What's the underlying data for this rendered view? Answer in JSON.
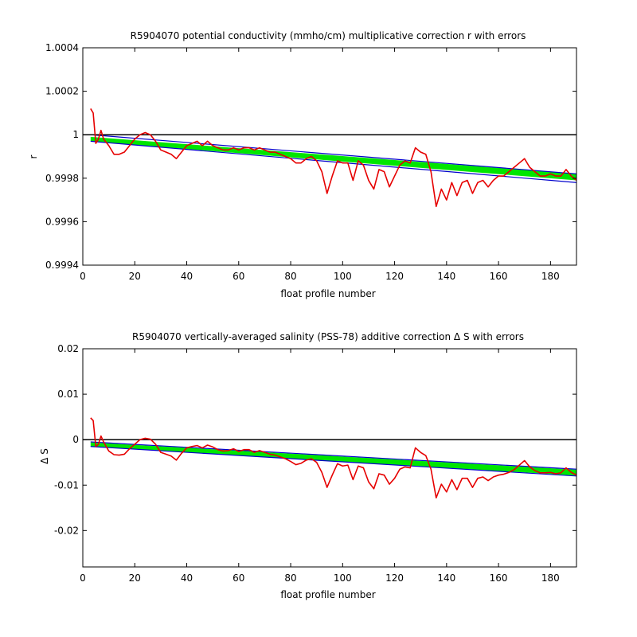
{
  "chart_data": [
    {
      "type": "line",
      "title": "R5904070 potential conductivity (mmho/cm) multiplicative correction r with errors",
      "xlabel": "float profile number",
      "ylabel": "r",
      "xlim": [
        0,
        190
      ],
      "ylim": [
        0.9994,
        1.0004
      ],
      "xticks": [
        0,
        20,
        40,
        60,
        80,
        100,
        120,
        140,
        160,
        180
      ],
      "xtick_labels": [
        "0",
        "20",
        "40",
        "60",
        "80",
        "100",
        "120",
        "140",
        "160",
        "180"
      ],
      "yticks": [
        0.9994,
        0.9996,
        0.9998,
        1.0,
        1.0002,
        1.0004
      ],
      "ytick_labels": [
        "0.9994",
        "0.9996",
        "0.9998",
        "1",
        "1.0002",
        "1.0004"
      ],
      "grid": false,
      "reference_line": 1.0,
      "band_upper": {
        "x": [
          3,
          190
        ],
        "y": [
          1.0,
          0.99982
        ]
      },
      "band_lower": {
        "x": [
          3,
          190
        ],
        "y": [
          0.99997,
          0.99978
        ]
      },
      "band_fill": {
        "x": [
          3,
          190
        ],
        "y_top": [
          0.99999,
          0.99982
        ],
        "y_bottom": [
          0.99997,
          0.99979
        ]
      },
      "series": [
        {
          "x": [
            3,
            4,
            5,
            6,
            7,
            8,
            10,
            12,
            14,
            16,
            18,
            20,
            22,
            24,
            26,
            28,
            30,
            32,
            34,
            36,
            38,
            40,
            42,
            44,
            46,
            48,
            50,
            52,
            54,
            56,
            58,
            60,
            62,
            64,
            66,
            68,
            70,
            72,
            74,
            76,
            78,
            80,
            82,
            84,
            86,
            88,
            90,
            92,
            94,
            96,
            98,
            100,
            102,
            104,
            106,
            108,
            110,
            112,
            114,
            116,
            118,
            120,
            122,
            124,
            126,
            128,
            130,
            132,
            134,
            136,
            138,
            140,
            142,
            144,
            146,
            148,
            150,
            152,
            154,
            156,
            158,
            160,
            162,
            164,
            166,
            168,
            170,
            172,
            174,
            176,
            178,
            180,
            182,
            184,
            186,
            188,
            190
          ],
          "y": [
            1.00012,
            1.0001,
            0.99996,
            0.99998,
            1.00002,
            0.99998,
            0.99995,
            0.99991,
            0.99991,
            0.99992,
            0.99995,
            0.99998,
            1.0,
            1.00001,
            1.0,
            0.99997,
            0.99993,
            0.99992,
            0.99991,
            0.99989,
            0.99992,
            0.99995,
            0.99996,
            0.99997,
            0.99995,
            0.99997,
            0.99995,
            0.99994,
            0.99993,
            0.99993,
            0.99994,
            0.99993,
            0.99994,
            0.99994,
            0.99993,
            0.99994,
            0.99993,
            0.99992,
            0.99992,
            0.99991,
            0.9999,
            0.99989,
            0.99987,
            0.99987,
            0.99989,
            0.9999,
            0.99988,
            0.99983,
            0.99973,
            0.99981,
            0.99988,
            0.99987,
            0.99987,
            0.99979,
            0.99988,
            0.99986,
            0.99979,
            0.99975,
            0.99984,
            0.99983,
            0.99976,
            0.99981,
            0.99986,
            0.99988,
            0.99987,
            0.99994,
            0.99992,
            0.99991,
            0.99983,
            0.99967,
            0.99975,
            0.9997,
            0.99978,
            0.99972,
            0.99978,
            0.99979,
            0.99973,
            0.99978,
            0.99979,
            0.99976,
            0.99979,
            0.99981,
            0.99981,
            0.99983,
            0.99985,
            0.99987,
            0.99989,
            0.99985,
            0.99983,
            0.99981,
            0.99981,
            0.99982,
            0.99981,
            0.99981,
            0.99984,
            0.99981,
            0.99979
          ]
        }
      ],
      "colors": {
        "axis": "#000000",
        "reference": "#000000",
        "band_fill": "#00e600",
        "band_edge": "#0000cc",
        "series": "#e60000"
      }
    },
    {
      "type": "line",
      "title": "R5904070 vertically-averaged salinity (PSS-78) additive correction Δ S with errors",
      "xlabel": "float profile number",
      "ylabel": "Δ S",
      "xlim": [
        0,
        190
      ],
      "ylim": [
        -0.028,
        0.02
      ],
      "xticks": [
        0,
        20,
        40,
        60,
        80,
        100,
        120,
        140,
        160,
        180
      ],
      "xtick_labels": [
        "0",
        "20",
        "40",
        "60",
        "80",
        "100",
        "120",
        "140",
        "160",
        "180"
      ],
      "yticks": [
        -0.02,
        -0.01,
        0,
        0.01,
        0.02
      ],
      "ytick_labels": [
        "-0.02",
        "-0.01",
        "0",
        "0.01",
        "0.02"
      ],
      "grid": false,
      "reference_line": 0,
      "band_upper": {
        "x": [
          3,
          190
        ],
        "y": [
          -0.0005,
          -0.0065
        ]
      },
      "band_lower": {
        "x": [
          3,
          190
        ],
        "y": [
          -0.0015,
          -0.008
        ]
      },
      "band_fill": {
        "x": [
          3,
          190
        ],
        "y_top": [
          -0.0006,
          -0.0066
        ],
        "y_bottom": [
          -0.0015,
          -0.0079
        ]
      },
      "series": [
        {
          "x": [
            3,
            4,
            5,
            6,
            7,
            8,
            10,
            12,
            14,
            16,
            18,
            20,
            22,
            24,
            26,
            28,
            30,
            32,
            34,
            36,
            38,
            40,
            42,
            44,
            46,
            48,
            50,
            52,
            54,
            56,
            58,
            60,
            62,
            64,
            66,
            68,
            70,
            72,
            74,
            76,
            78,
            80,
            82,
            84,
            86,
            88,
            90,
            92,
            94,
            96,
            98,
            100,
            102,
            104,
            106,
            108,
            110,
            112,
            114,
            116,
            118,
            120,
            122,
            124,
            126,
            128,
            130,
            132,
            134,
            136,
            138,
            140,
            142,
            144,
            146,
            148,
            150,
            152,
            154,
            156,
            158,
            160,
            162,
            164,
            166,
            168,
            170,
            172,
            174,
            176,
            178,
            180,
            182,
            184,
            186,
            188,
            190
          ],
          "y": [
            0.0048,
            0.0042,
            -0.0015,
            -0.001,
            0.0008,
            -0.0005,
            -0.0025,
            -0.0033,
            -0.0034,
            -0.0032,
            -0.002,
            -0.001,
            0.0,
            0.0003,
            0.0001,
            -0.001,
            -0.0028,
            -0.0032,
            -0.0036,
            -0.0045,
            -0.003,
            -0.0018,
            -0.0015,
            -0.0013,
            -0.0018,
            -0.0012,
            -0.0016,
            -0.0022,
            -0.0025,
            -0.0024,
            -0.002,
            -0.0026,
            -0.0022,
            -0.0022,
            -0.0028,
            -0.0024,
            -0.0028,
            -0.0032,
            -0.0034,
            -0.0038,
            -0.0042,
            -0.0048,
            -0.0055,
            -0.0052,
            -0.0045,
            -0.0042,
            -0.005,
            -0.0072,
            -0.0105,
            -0.0078,
            -0.0053,
            -0.0058,
            -0.0056,
            -0.0088,
            -0.0058,
            -0.0062,
            -0.0093,
            -0.0108,
            -0.0075,
            -0.0078,
            -0.0098,
            -0.0085,
            -0.0065,
            -0.006,
            -0.0062,
            -0.0018,
            -0.0028,
            -0.0035,
            -0.0065,
            -0.0128,
            -0.0098,
            -0.0115,
            -0.0088,
            -0.011,
            -0.0085,
            -0.0085,
            -0.0105,
            -0.0085,
            -0.0082,
            -0.009,
            -0.0082,
            -0.0078,
            -0.0076,
            -0.0072,
            -0.0066,
            -0.0056,
            -0.0046,
            -0.006,
            -0.0068,
            -0.0073,
            -0.0073,
            -0.0072,
            -0.0075,
            -0.0073,
            -0.0062,
            -0.0072,
            -0.0078
          ]
        }
      ],
      "colors": {
        "axis": "#000000",
        "reference": "#000000",
        "band_fill": "#00e600",
        "band_edge": "#0000cc",
        "series": "#e60000"
      }
    }
  ]
}
